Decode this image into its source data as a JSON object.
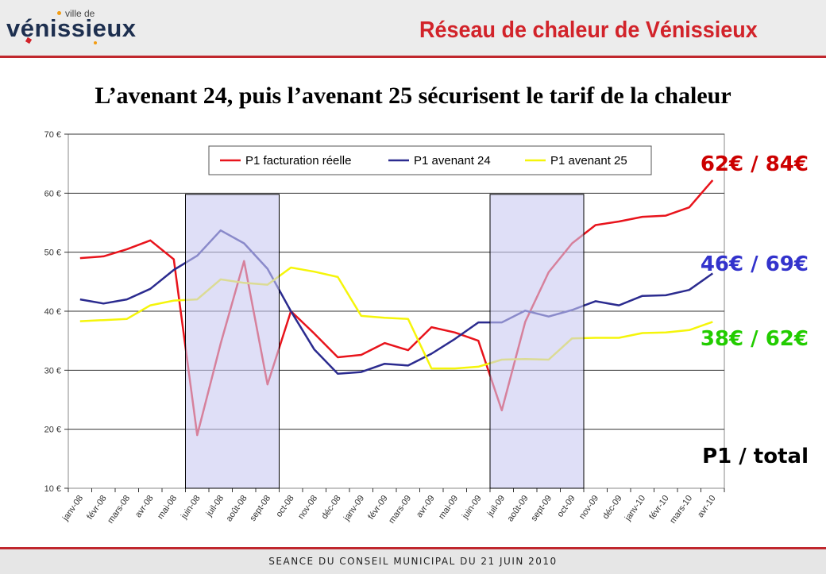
{
  "header": {
    "logo_small": "ville de",
    "logo_big": "vénissieux",
    "title": "Réseau de chaleur de Vénissieux"
  },
  "slide_title": "L’avenant 24, puis l’avenant 25 sécurisent le tarif de la chaleur",
  "side_labels": {
    "p1_facturation": "62€ / 84€",
    "p1_avenant24": "46€ / 69€",
    "p1_avenant25": "38€ / 62€",
    "legend_note": "P1 / total"
  },
  "colors": {
    "facturation": "#e8141c",
    "avenant24": "#2b2b8f",
    "avenant25": "#f5f50a",
    "highlight": "#c9c9f2",
    "side_red": "#cc0000",
    "side_blue": "#3333cc",
    "side_green": "#22cc00",
    "accent": "#c0272d"
  },
  "footer": {
    "text": "SEANCE DU CONSEIL MUNICIPAL DU 21 JUIN 2010"
  },
  "chart_data": {
    "type": "line",
    "categories": [
      "janv-08",
      "févr-08",
      "mars-08",
      "avr-08",
      "mai-08",
      "juin-08",
      "juil-08",
      "août-08",
      "sept-08",
      "oct-08",
      "nov-08",
      "déc-08",
      "janv-09",
      "févr-09",
      "mars-09",
      "avr-09",
      "mai-09",
      "juin-09",
      "juil-09",
      "août-09",
      "sept-09",
      "oct-09",
      "nov-09",
      "déc-09",
      "janv-10",
      "févr-10",
      "mars-10",
      "avr-10"
    ],
    "y_ticks": [
      "10 €",
      "20 €",
      "30 €",
      "40 €",
      "50 €",
      "60 €",
      "70 €"
    ],
    "ylim": [
      10,
      70
    ],
    "grid": true,
    "legend_position": "top",
    "highlight_ranges": [
      [
        4.5,
        8.5
      ],
      [
        17.5,
        21.5
      ]
    ],
    "series": [
      {
        "name": "P1 facturation réelle",
        "values": [
          49.0,
          49.3,
          50.5,
          52.0,
          48.8,
          19.0,
          34.5,
          48.5,
          27.6,
          40.0,
          36.2,
          32.2,
          32.6,
          34.6,
          33.4,
          37.3,
          36.4,
          35.0,
          23.2,
          38.2,
          46.6,
          51.5,
          54.6,
          55.2,
          56.0,
          56.2,
          57.6,
          62.2
        ]
      },
      {
        "name": "P1 avenant 24",
        "values": [
          42.0,
          41.3,
          42.0,
          43.8,
          47.0,
          49.4,
          53.7,
          51.5,
          47.2,
          40.0,
          33.5,
          29.4,
          29.7,
          31.1,
          30.8,
          32.8,
          35.3,
          38.1,
          38.1,
          40.1,
          39.1,
          40.2,
          41.7,
          41.0,
          42.6,
          42.7,
          43.6,
          46.4
        ]
      },
      {
        "name": "P1 avenant 25",
        "values": [
          38.3,
          38.5,
          38.7,
          41.0,
          41.8,
          42.0,
          45.4,
          44.8,
          44.5,
          47.4,
          46.7,
          45.8,
          39.2,
          38.9,
          38.7,
          30.3,
          30.3,
          30.6,
          31.8,
          31.9,
          31.8,
          35.4,
          35.5,
          35.5,
          36.3,
          36.4,
          36.8,
          38.2
        ]
      }
    ]
  }
}
